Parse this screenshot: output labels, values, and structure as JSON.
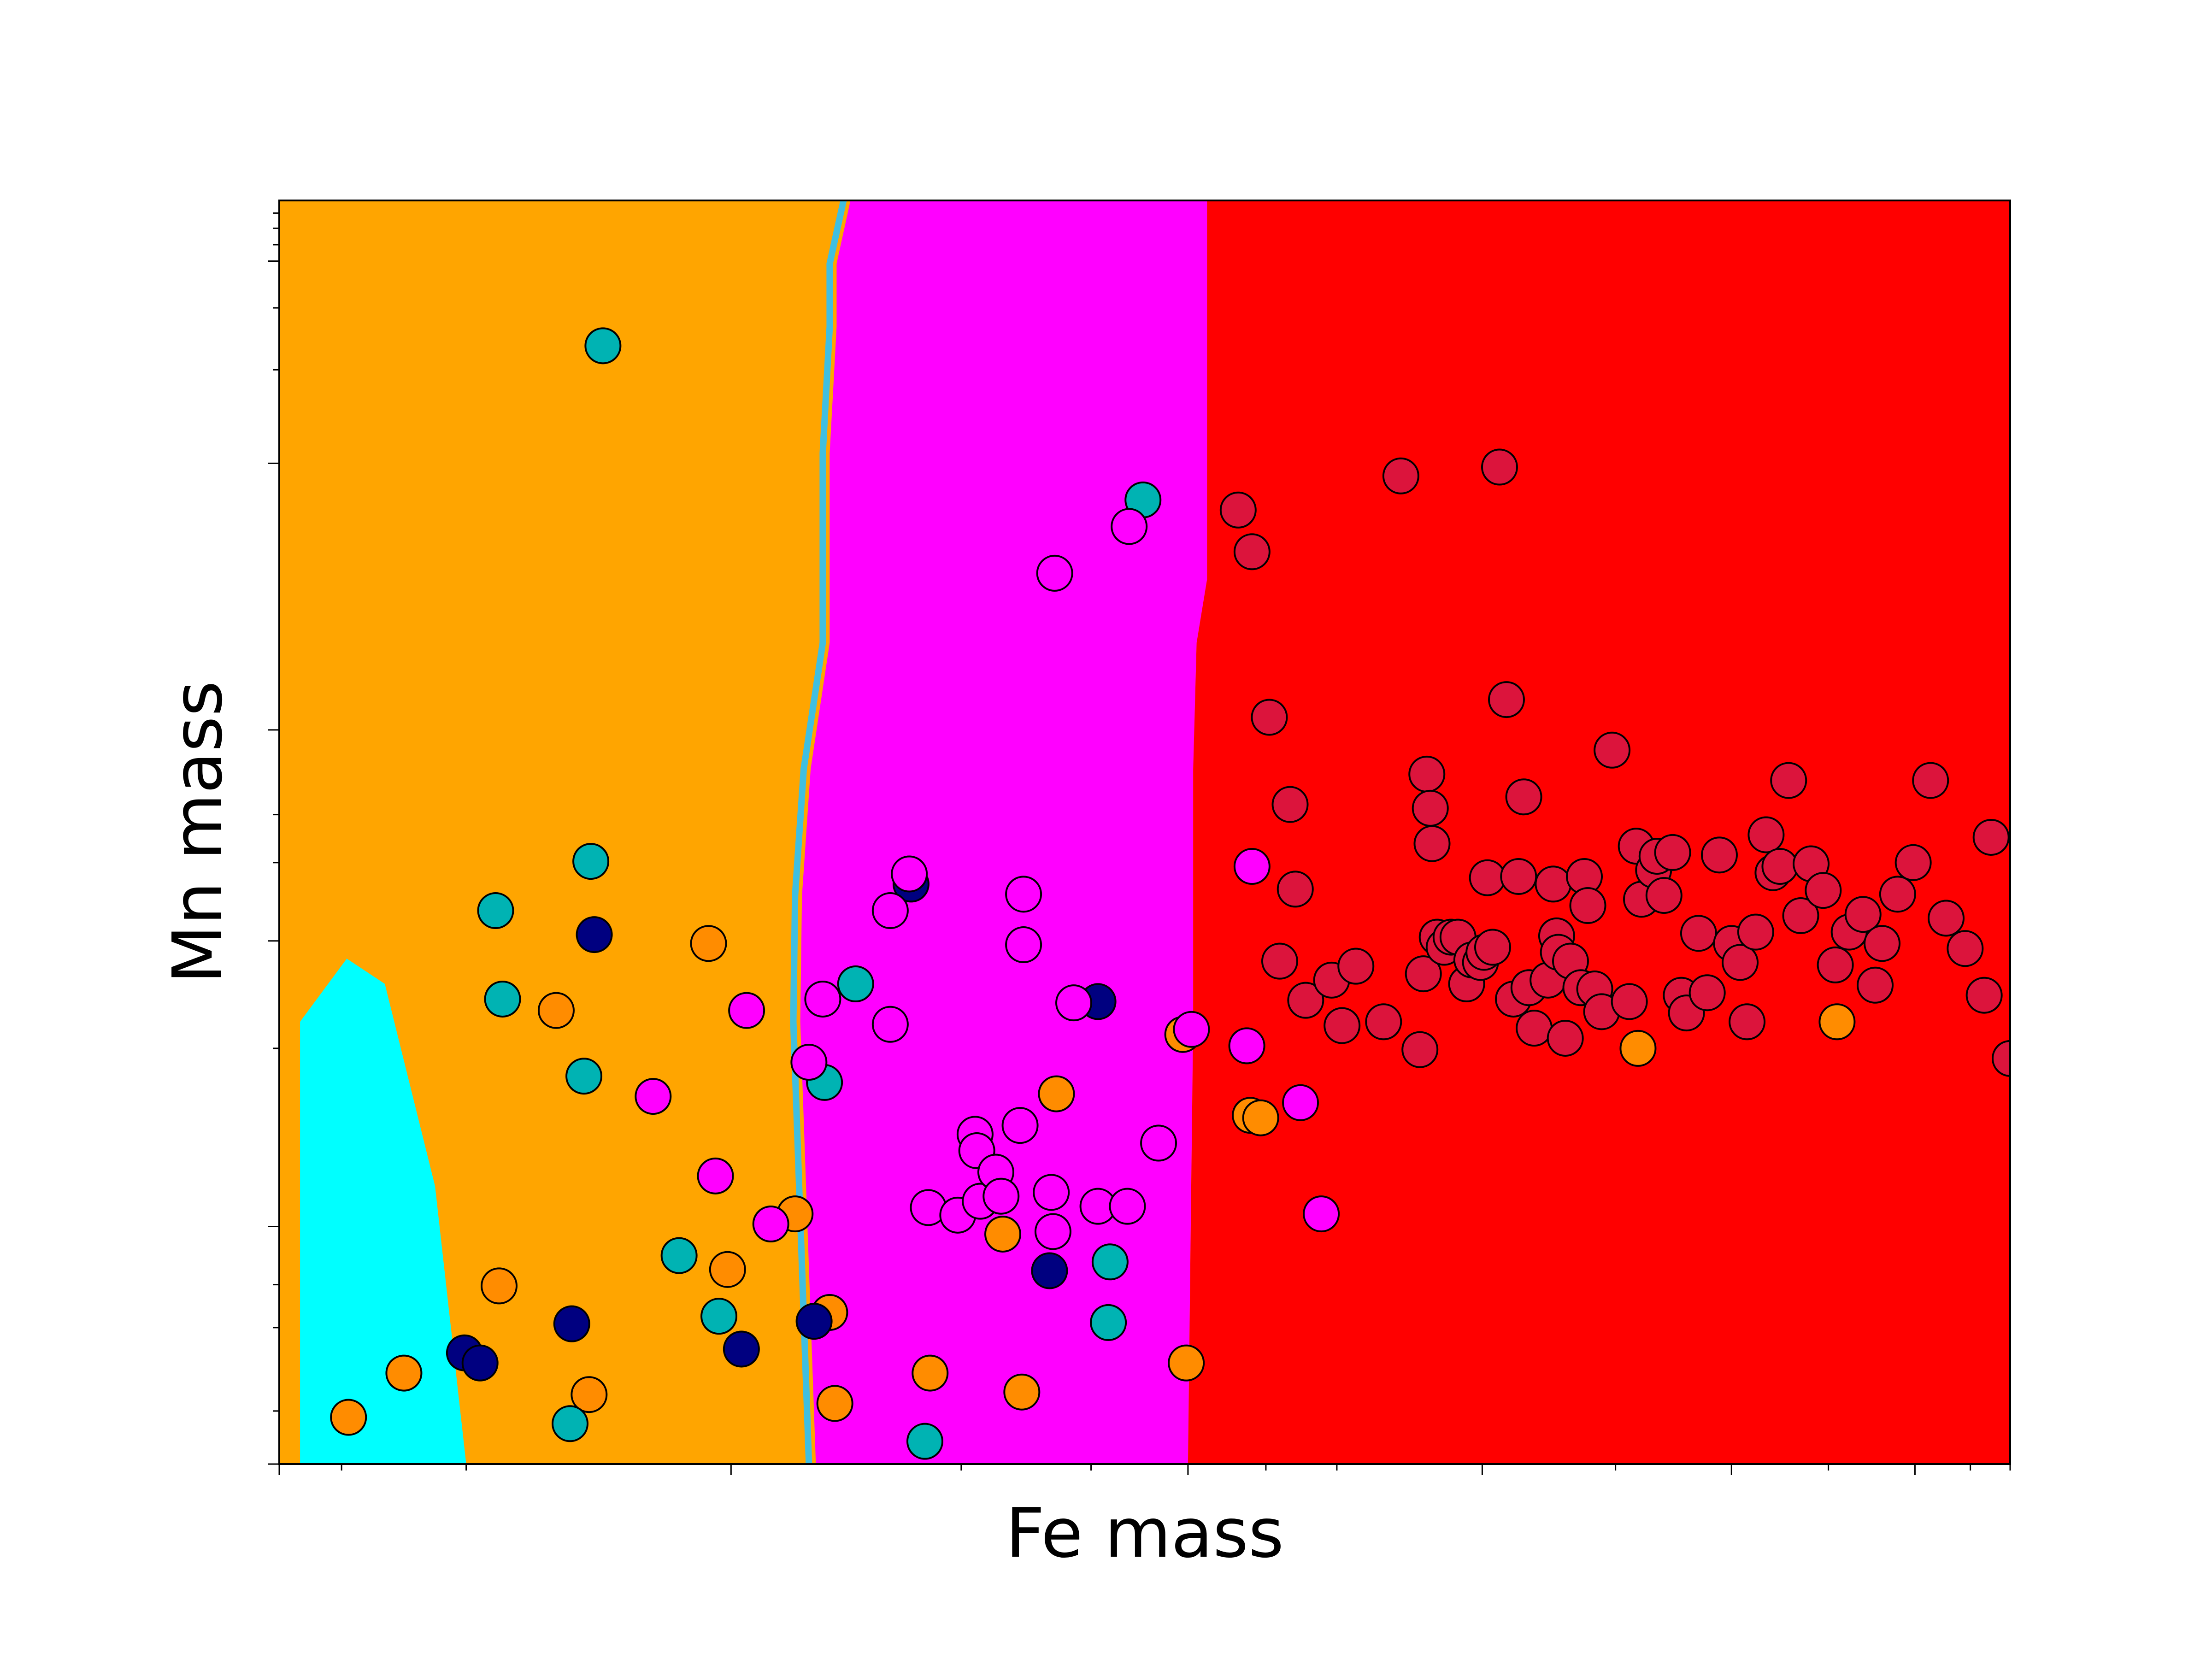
{
  "chart_data": {
    "type": "scatter",
    "title": "",
    "xlabel": "Fe mass",
    "ylabel": "Mn mass",
    "xlim": [
      0,
      1
    ],
    "ylim": [
      0,
      1
    ],
    "x_scale": "log",
    "y_scale": "log",
    "grid": false,
    "tick_labels_shown": false,
    "decision_regions": {
      "colors": {
        "orange": "#ffa500",
        "cyan": "#00ffff",
        "magenta": "#ff00ff",
        "red": "#ff0000"
      },
      "boundaries": {
        "orange_magenta_x": [
          0.31,
          0.301,
          0.302,
          0.307,
          0.318,
          0.318,
          0.318,
          0.322,
          0.322,
          0.33
        ],
        "magenta_red_x": [
          0.525,
          0.528,
          0.528,
          0.528,
          0.53,
          0.536,
          0.536,
          0.536,
          0.536,
          0.536
        ],
        "boundary_y_levels": [
          0.0,
          0.35,
          0.45,
          0.55,
          0.65,
          0.7,
          0.8,
          0.9,
          0.95,
          1.0
        ]
      },
      "cyan_region": [
        [
          0.012,
          0.0
        ],
        [
          0.108,
          0.0
        ],
        [
          0.09,
          0.22
        ],
        [
          0.061,
          0.38
        ],
        [
          0.039,
          0.4
        ],
        [
          0.012,
          0.35
        ]
      ]
    },
    "series": [
      {
        "color": "#ff8c00",
        "points": [
          [
            0.04,
            0.037
          ],
          [
            0.072,
            0.072
          ],
          [
            0.127,
            0.141
          ],
          [
            0.16,
            0.359
          ],
          [
            0.179,
            0.055
          ],
          [
            0.248,
            0.412
          ],
          [
            0.259,
            0.154
          ],
          [
            0.298,
            0.198
          ],
          [
            0.318,
            0.12
          ],
          [
            0.321,
            0.048
          ],
          [
            0.376,
            0.072
          ],
          [
            0.418,
            0.182
          ],
          [
            0.429,
            0.057
          ],
          [
            0.449,
            0.293
          ],
          [
            0.522,
            0.34
          ],
          [
            0.524,
            0.08
          ],
          [
            0.561,
            0.276
          ],
          [
            0.567,
            0.274
          ],
          [
            0.785,
            0.329
          ],
          [
            0.9,
            0.35
          ]
        ]
      },
      {
        "color": "#00b3b3",
        "points": [
          [
            0.125,
            0.438
          ],
          [
            0.129,
            0.368
          ],
          [
            0.168,
            0.032
          ],
          [
            0.176,
            0.307
          ],
          [
            0.18,
            0.477
          ],
          [
            0.187,
            0.885
          ],
          [
            0.231,
            0.165
          ],
          [
            0.254,
            0.117
          ],
          [
            0.315,
            0.302
          ],
          [
            0.333,
            0.38
          ],
          [
            0.373,
            0.018
          ],
          [
            0.48,
            0.16
          ],
          [
            0.479,
            0.112
          ],
          [
            0.499,
            0.763
          ]
        ]
      },
      {
        "color": "#000080",
        "points": [
          [
            0.107,
            0.088
          ],
          [
            0.116,
            0.08
          ],
          [
            0.169,
            0.111
          ],
          [
            0.182,
            0.419
          ],
          [
            0.267,
            0.091
          ],
          [
            0.309,
            0.113
          ],
          [
            0.365,
            0.459
          ],
          [
            0.445,
            0.153
          ],
          [
            0.473,
            0.366
          ]
        ]
      },
      {
        "color": "#ff00ff",
        "points": [
          [
            0.216,
            0.291
          ],
          [
            0.252,
            0.228
          ],
          [
            0.27,
            0.359
          ],
          [
            0.284,
            0.19
          ],
          [
            0.306,
            0.318
          ],
          [
            0.314,
            0.368
          ],
          [
            0.353,
            0.438
          ],
          [
            0.353,
            0.348
          ],
          [
            0.364,
            0.467
          ],
          [
            0.375,
            0.203
          ],
          [
            0.392,
            0.197
          ],
          [
            0.402,
            0.261
          ],
          [
            0.403,
            0.248
          ],
          [
            0.405,
            0.208
          ],
          [
            0.414,
            0.231
          ],
          [
            0.417,
            0.212
          ],
          [
            0.428,
            0.268
          ],
          [
            0.43,
            0.451
          ],
          [
            0.43,
            0.411
          ],
          [
            0.446,
            0.215
          ],
          [
            0.447,
            0.184
          ],
          [
            0.448,
            0.705
          ],
          [
            0.459,
            0.365
          ],
          [
            0.473,
            0.204
          ],
          [
            0.49,
            0.204
          ],
          [
            0.491,
            0.742
          ],
          [
            0.508,
            0.254
          ],
          [
            0.527,
            0.344
          ],
          [
            0.559,
            0.331
          ],
          [
            0.562,
            0.473
          ],
          [
            0.59,
            0.286
          ],
          [
            0.602,
            0.198
          ]
        ]
      },
      {
        "color": "#dc143c",
        "points": [
          [
            0.554,
            0.755
          ],
          [
            0.562,
            0.722
          ],
          [
            0.572,
            0.591
          ],
          [
            0.578,
            0.398
          ],
          [
            0.584,
            0.522
          ],
          [
            0.587,
            0.455
          ],
          [
            0.593,
            0.367
          ],
          [
            0.608,
            0.383
          ],
          [
            0.614,
            0.347
          ],
          [
            0.622,
            0.394
          ],
          [
            0.638,
            0.35
          ],
          [
            0.648,
            0.782
          ],
          [
            0.659,
            0.328
          ],
          [
            0.661,
            0.388
          ],
          [
            0.663,
            0.546
          ],
          [
            0.665,
            0.519
          ],
          [
            0.666,
            0.491
          ],
          [
            0.669,
            0.417
          ],
          [
            0.673,
            0.409
          ],
          [
            0.677,
            0.417
          ],
          [
            0.681,
            0.417
          ],
          [
            0.686,
            0.38
          ],
          [
            0.689,
            0.399
          ],
          [
            0.694,
            0.397
          ],
          [
            0.696,
            0.405
          ],
          [
            0.698,
            0.464
          ],
          [
            0.701,
            0.409
          ],
          [
            0.705,
            0.789
          ],
          [
            0.709,
            0.605
          ],
          [
            0.713,
            0.368
          ],
          [
            0.716,
            0.465
          ],
          [
            0.719,
            0.528
          ],
          [
            0.722,
            0.377
          ],
          [
            0.725,
            0.345
          ],
          [
            0.733,
            0.383
          ],
          [
            0.736,
            0.459
          ],
          [
            0.738,
            0.418
          ],
          [
            0.739,
            0.405
          ],
          [
            0.743,
            0.337
          ],
          [
            0.746,
            0.398
          ],
          [
            0.752,
            0.377
          ],
          [
            0.754,
            0.465
          ],
          [
            0.756,
            0.442
          ],
          [
            0.76,
            0.376
          ],
          [
            0.764,
            0.358
          ],
          [
            0.77,
            0.565
          ],
          [
            0.78,
            0.366
          ],
          [
            0.784,
            0.489
          ],
          [
            0.787,
            0.447
          ],
          [
            0.794,
            0.47
          ],
          [
            0.796,
            0.481
          ],
          [
            0.8,
            0.45
          ],
          [
            0.805,
            0.484
          ],
          [
            0.81,
            0.371
          ],
          [
            0.813,
            0.357
          ],
          [
            0.82,
            0.42
          ],
          [
            0.825,
            0.373
          ],
          [
            0.832,
            0.482
          ],
          [
            0.839,
            0.412
          ],
          [
            0.844,
            0.397
          ],
          [
            0.848,
            0.35
          ],
          [
            0.853,
            0.421
          ],
          [
            0.859,
            0.498
          ],
          [
            0.863,
            0.468
          ],
          [
            0.867,
            0.473
          ],
          [
            0.872,
            0.541
          ],
          [
            0.879,
            0.434
          ],
          [
            0.885,
            0.475
          ],
          [
            0.892,
            0.454
          ],
          [
            0.899,
            0.395
          ],
          [
            0.907,
            0.421
          ],
          [
            0.915,
            0.435
          ],
          [
            0.922,
            0.379
          ],
          [
            0.926,
            0.412
          ],
          [
            0.935,
            0.451
          ],
          [
            0.944,
            0.476
          ],
          [
            0.954,
            0.541
          ],
          [
            0.963,
            0.432
          ],
          [
            0.974,
            0.408
          ],
          [
            0.985,
            0.371
          ],
          [
            0.989,
            0.496
          ],
          [
            1.0,
            0.321
          ]
        ]
      }
    ]
  }
}
